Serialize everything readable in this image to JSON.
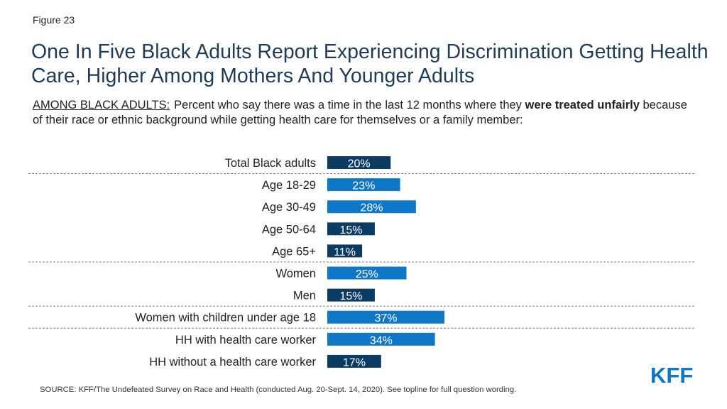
{
  "figure_label": "Figure 23",
  "title": "One In Five Black Adults Report Experiencing Discrimination Getting Health Care, Higher Among Mothers And Younger Adults",
  "subtitle": {
    "prefix": "AMONG BLACK ADULTS:",
    "text_before": "Percent who say there was a time in the last 12 months where they ",
    "bold": "were treated unfairly",
    "text_after": " because of their race or ethnic background while getting health care for themselves or a family member:"
  },
  "chart_data": {
    "type": "bar",
    "orientation": "horizontal",
    "categories": [
      "Total Black adults",
      "Age 18-29",
      "Age 30-49",
      "Age 50-64",
      "Age 65+",
      "Women",
      "Men",
      "Women with children under age 18",
      "HH with health care worker",
      "HH without a health care worker"
    ],
    "values": [
      20,
      23,
      28,
      15,
      11,
      25,
      15,
      37,
      34,
      17
    ],
    "labels": [
      "20%",
      "23%",
      "28%",
      "15%",
      "11%",
      "25%",
      "15%",
      "37%",
      "34%",
      "17%"
    ],
    "bar_colors": [
      "#0b3a62",
      "#0f77c7",
      "#0f77c7",
      "#0b3a62",
      "#0b3a62",
      "#0f77c7",
      "#0b3a62",
      "#0f77c7",
      "#0f77c7",
      "#0b3a62"
    ],
    "group_separators_after": [
      0,
      4,
      6,
      7
    ],
    "xlim": [
      0,
      100
    ],
    "grid": false,
    "legend": "none"
  },
  "colors": {
    "dark_navy": "#0b3a62",
    "bright_blue": "#0f77c7",
    "title_color": "#1d3c5a"
  },
  "logo": "KFF",
  "source": "SOURCE: KFF/The Undefeated Survey on Race and Health (conducted Aug. 20-Sept. 14, 2020). See topline for full question wording."
}
